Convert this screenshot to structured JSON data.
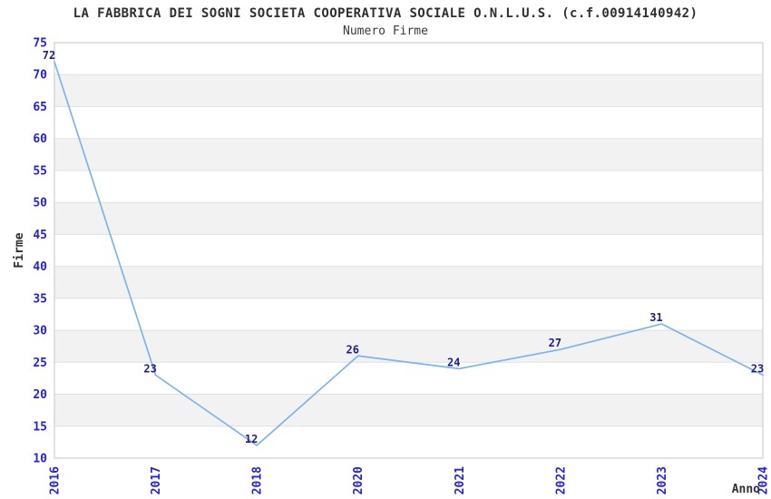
{
  "chart_data": {
    "type": "line",
    "title": "LA FABBRICA DEI SOGNI SOCIETA COOPERATIVA SOCIALE O.N.L.U.S. (c.f.00914140942)",
    "subtitle": "Numero Firme",
    "xlabel": "Anno",
    "ylabel": "Firme",
    "categories": [
      "2016",
      "2017",
      "2018",
      "2020",
      "2021",
      "2022",
      "2023",
      "2024"
    ],
    "values": [
      72,
      23,
      12,
      26,
      24,
      27,
      31,
      23
    ],
    "ylim": [
      10,
      75
    ],
    "ytick_step": 5,
    "yticks": [
      10,
      15,
      20,
      25,
      30,
      35,
      40,
      45,
      50,
      55,
      60,
      65,
      70,
      75
    ],
    "grid": "alternating-horizontal-bands",
    "legend_position": "none",
    "colors": {
      "line": "#7FB3EA",
      "tick_label": "#2323D7",
      "data_label": "#1F1F87",
      "band": "#F2F2F2",
      "grid_line": "#E0E0E0",
      "plot_border": "#CFCFCF",
      "text": "#2F2F2F",
      "background": "#FFFFFF"
    }
  }
}
